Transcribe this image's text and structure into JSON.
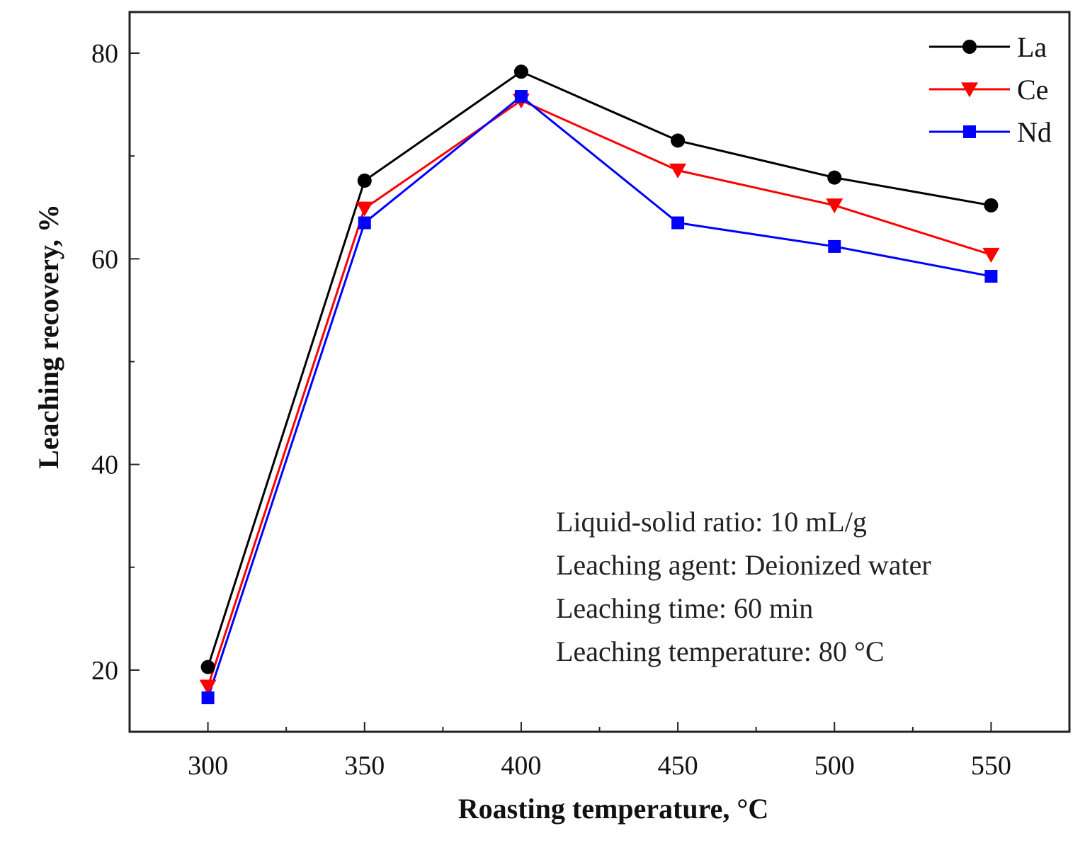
{
  "chart_data": {
    "type": "line",
    "title": "",
    "xlabel": "Roasting temperature, °C",
    "ylabel": "Leaching recovery, %",
    "x": [
      300,
      350,
      400,
      450,
      500,
      550
    ],
    "xlim": [
      275,
      575
    ],
    "ylim": [
      14,
      84
    ],
    "x_ticks": [
      300,
      350,
      400,
      450,
      500,
      550
    ],
    "x_minor_ticks": [
      325,
      375,
      425,
      475,
      525
    ],
    "y_ticks": [
      20,
      40,
      60,
      80
    ],
    "y_minor_ticks": [
      30,
      50,
      70
    ],
    "grid": false,
    "legend_position": "top-right",
    "series": [
      {
        "name": "La",
        "color": "#000000",
        "marker": "circle",
        "values": [
          20.3,
          67.6,
          78.2,
          71.5,
          67.9,
          65.2
        ]
      },
      {
        "name": "Ce",
        "color": "#ff0000",
        "marker": "triangle-down",
        "values": [
          18.4,
          64.9,
          75.4,
          68.6,
          65.2,
          60.4
        ]
      },
      {
        "name": "Nd",
        "color": "#0000ff",
        "marker": "square",
        "values": [
          17.3,
          63.5,
          75.8,
          63.5,
          61.2,
          58.3
        ]
      }
    ],
    "annotations": [
      "Liquid-solid ratio: 10 mL/g",
      "Leaching agent: Deionized water",
      "Leaching time: 60 min",
      "Leaching temperature: 80 °C"
    ]
  }
}
